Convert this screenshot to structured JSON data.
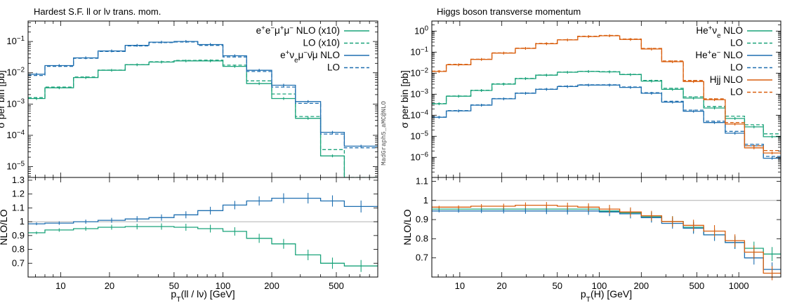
{
  "colors": {
    "green": "#1aa37a",
    "blue": "#1f6fb0",
    "orange": "#d95f0e",
    "reference_line": "#b0b0b0",
    "frame": "#000000"
  },
  "watermark": "MadGraph5_aMC@NLO",
  "chart_data": [
    {
      "type": "line",
      "subtype": "histogram-step",
      "title": "Hardest S.F. ll or lν trans. mom.",
      "xlabel": "p_T(ll / lν) [GeV]",
      "ylabel": "σ per bin [pb]",
      "ratio_ylabel": "NLO/LO",
      "xscale": "log",
      "yscale": "log",
      "xlim": [
        6.3,
        900
      ],
      "ylim": [
        4.5e-06,
        0.45
      ],
      "ratio_ylim": [
        0.6,
        1.32
      ],
      "ratio_reference": 1,
      "x_tick_labels": [
        "10",
        "20",
        "50",
        "100",
        "200",
        "500"
      ],
      "x_ticks": [
        10,
        20,
        50,
        100,
        200,
        500
      ],
      "y_tick_labels": [
        "10^-5",
        "10^-4",
        "10^-3",
        "10^-2",
        "10^-1"
      ],
      "y_ticks": [
        1e-05,
        0.0001,
        0.001,
        0.01,
        0.1
      ],
      "ratio_tick_labels": [
        "0.7",
        "0.8",
        "0.9",
        "1",
        "1.1",
        "1.2",
        "1.3"
      ],
      "ratio_ticks": [
        0.7,
        0.8,
        0.9,
        1.0,
        1.1,
        1.2,
        1.3
      ],
      "bin_edges": [
        6.3,
        8,
        12,
        17,
        25,
        35,
        50,
        70,
        100,
        140,
        200,
        280,
        400,
        560,
        900
      ],
      "legend_position": "top-right",
      "series": [
        {
          "name": "e⁺e⁻μ⁺μ⁻ NLO (x10)",
          "color": "green",
          "dash": "solid",
          "values": [
            0.0015,
            0.0033,
            0.007,
            0.012,
            0.018,
            0.022,
            0.024,
            0.024,
            0.016,
            0.0045,
            0.0015,
            0.00035,
            2.2e-05,
            2.5e-06
          ]
        },
        {
          "name": "LO (x10)",
          "color": "green",
          "dash": "dashed",
          "values": [
            0.0016,
            0.0035,
            0.0073,
            0.0122,
            0.0182,
            0.0225,
            0.0248,
            0.0252,
            0.0175,
            0.0055,
            0.0021,
            0.0004,
            3.5e-05,
            4.5e-06
          ]
        },
        {
          "name": "e⁺ν_eμ⁻ν̄_μ NLO",
          "color": "blue",
          "dash": "solid",
          "values": [
            0.009,
            0.017,
            0.03,
            0.05,
            0.075,
            0.095,
            0.1,
            0.08,
            0.035,
            0.012,
            0.004,
            0.0012,
            0.000125,
            4.5e-05
          ]
        },
        {
          "name": "LO",
          "color": "blue",
          "dash": "dashed",
          "values": [
            0.0082,
            0.016,
            0.029,
            0.048,
            0.072,
            0.092,
            0.096,
            0.075,
            0.032,
            0.011,
            0.0035,
            0.00105,
            0.00011,
            4e-05
          ]
        }
      ],
      "ratio_series": [
        {
          "name": "e⁺e⁻μ⁺μ⁻ NLO/LO",
          "color": "green",
          "values": [
            0.92,
            0.94,
            0.95,
            0.96,
            0.965,
            0.965,
            0.96,
            0.95,
            0.93,
            0.88,
            0.84,
            0.76,
            0.7,
            0.68
          ]
        },
        {
          "name": "e⁺ν_eμ⁻ν̄_μ NLO/LO",
          "color": "blue",
          "values": [
            0.985,
            0.99,
            1.0,
            1.01,
            1.02,
            1.03,
            1.05,
            1.08,
            1.12,
            1.15,
            1.17,
            1.17,
            1.15,
            1.11
          ]
        }
      ]
    },
    {
      "type": "line",
      "subtype": "histogram-step",
      "title": "Higgs boson transverse momentum",
      "xlabel": "p_T(H) [GeV]",
      "ylabel": "σ per bin [pb]",
      "ratio_ylabel": "NLO/LO",
      "xscale": "log",
      "yscale": "log",
      "xlim": [
        6.3,
        2000
      ],
      "ylim": [
        1.1e-07,
        3
      ],
      "ratio_ylim": [
        0.6,
        1.12
      ],
      "ratio_reference": 1,
      "x_tick_labels": [
        "10",
        "20",
        "50",
        "100",
        "200",
        "500",
        "1000"
      ],
      "x_ticks": [
        10,
        20,
        50,
        100,
        200,
        500,
        1000
      ],
      "y_tick_labels": [
        "10^-6",
        "10^-5",
        "10^-4",
        "10^-3",
        "10^-2",
        "10^-1",
        "10^0"
      ],
      "y_ticks": [
        1e-06,
        1e-05,
        0.0001,
        0.001,
        0.01,
        0.1,
        1
      ],
      "ratio_tick_labels": [
        "0.7",
        "0.8",
        "0.9",
        "1",
        "1.1"
      ],
      "ratio_ticks": [
        0.7,
        0.8,
        0.9,
        1.0,
        1.1
      ],
      "bin_edges": [
        6.3,
        8,
        12,
        17,
        25,
        35,
        50,
        70,
        100,
        140,
        200,
        280,
        400,
        560,
        800,
        1100,
        1500,
        2000
      ],
      "legend_position": "top-right",
      "series": [
        {
          "name": "He⁺ν_e NLO",
          "color": "green",
          "dash": "solid",
          "values": [
            0.00035,
            0.0008,
            0.0015,
            0.003,
            0.0055,
            0.008,
            0.011,
            0.012,
            0.0115,
            0.0085,
            0.0042,
            0.0017,
            0.00065,
            0.00022,
            7e-05,
            2.8e-05,
            9.5e-06
          ]
        },
        {
          "name": "LO",
          "color": "green",
          "dash": "dashed",
          "values": [
            0.00036,
            0.00082,
            0.00155,
            0.0031,
            0.0056,
            0.0082,
            0.0112,
            0.0122,
            0.0118,
            0.0088,
            0.0045,
            0.0019,
            0.00075,
            0.00026,
            9e-05,
            3.5e-05,
            1.3e-05
          ]
        },
        {
          "name": "He⁺e⁻ NLO",
          "color": "blue",
          "dash": "solid",
          "values": [
            8e-05,
            0.00016,
            0.0003,
            0.0006,
            0.0011,
            0.0017,
            0.0023,
            0.0027,
            0.0027,
            0.0021,
            0.0011,
            0.00042,
            0.000155,
            4.5e-05,
            1.4e-05,
            3.5e-06,
            9e-07
          ]
        },
        {
          "name": "LO",
          "color": "blue",
          "dash": "dashed",
          "values": [
            8.2e-05,
            0.000165,
            0.00031,
            0.00062,
            0.00114,
            0.00175,
            0.0024,
            0.0028,
            0.0028,
            0.0022,
            0.00118,
            0.00046,
            0.000175,
            5.2e-05,
            1.7e-05,
            4.2e-06,
            1.1e-06
          ]
        },
        {
          "name": "Hjj NLO",
          "color": "orange",
          "dash": "solid",
          "values": [
            0.012,
            0.025,
            0.045,
            0.09,
            0.15,
            0.25,
            0.38,
            0.55,
            0.6,
            0.4,
            0.14,
            0.035,
            0.004,
            0.00055,
            3.8e-05,
            2.8e-06,
            1.6e-06
          ]
        },
        {
          "name": "LO",
          "color": "orange",
          "dash": "dashed",
          "values": [
            0.0125,
            0.026,
            0.046,
            0.092,
            0.155,
            0.26,
            0.39,
            0.57,
            0.62,
            0.42,
            0.15,
            0.038,
            0.0045,
            0.0006,
            4.5e-05,
            3.5e-06,
            2.1e-06
          ]
        }
      ],
      "ratio_series": [
        {
          "name": "He⁺ν_e NLO/LO",
          "color": "green",
          "values": [
            0.955,
            0.955,
            0.955,
            0.955,
            0.955,
            0.955,
            0.955,
            0.955,
            0.945,
            0.935,
            0.915,
            0.89,
            0.86,
            0.82,
            0.78,
            0.75,
            0.72
          ]
        },
        {
          "name": "He⁺e⁻ NLO/LO",
          "color": "blue",
          "values": [
            0.945,
            0.945,
            0.945,
            0.945,
            0.945,
            0.945,
            0.945,
            0.945,
            0.94,
            0.93,
            0.91,
            0.88,
            0.855,
            0.82,
            0.78,
            0.7,
            0.64
          ]
        },
        {
          "name": "Hjj NLO/LO",
          "color": "orange",
          "values": [
            0.965,
            0.965,
            0.97,
            0.97,
            0.975,
            0.975,
            0.97,
            0.965,
            0.955,
            0.94,
            0.92,
            0.89,
            0.87,
            0.84,
            0.79,
            0.73,
            0.62
          ]
        }
      ]
    }
  ]
}
